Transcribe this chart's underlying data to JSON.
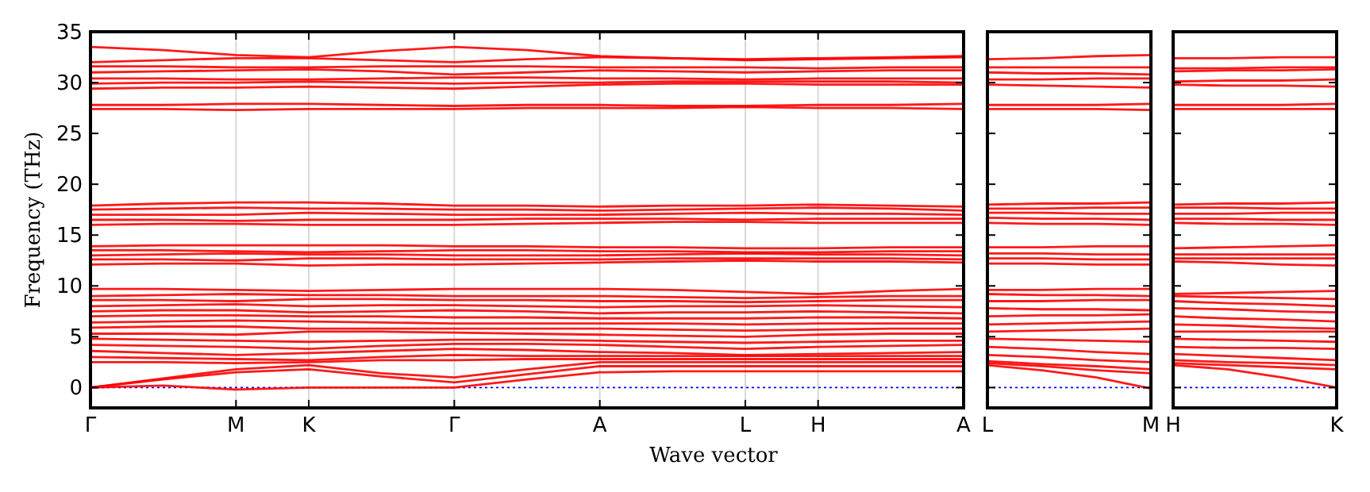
{
  "chart_data": [
    {
      "type": "line",
      "xlabel": "Wave vector",
      "ylabel": "Frequency (THz)",
      "categories": [
        "Γ",
        null,
        "M",
        "K",
        null,
        "Γ",
        null,
        "A",
        null,
        "L",
        "H",
        null,
        "A"
      ],
      "ylim": [
        -2,
        35
      ],
      "yticks": [
        0,
        5,
        10,
        15,
        20,
        25,
        30,
        35
      ],
      "grid": "x",
      "line_style": "solid",
      "ref_lines": [
        {
          "axis": "y",
          "value": 0,
          "color": "#0000ff",
          "line_style": "dotted"
        }
      ],
      "series": [
        {
          "color": "#ff0000",
          "values": [
            0,
            0.2,
            -0.2,
            0,
            0,
            0,
            0.8,
            1.5,
            1.6,
            1.6,
            1.6,
            1.6,
            1.6
          ]
        },
        {
          "color": "#ff0000",
          "values": [
            0,
            0.8,
            1.5,
            1.8,
            1.1,
            0.5,
            1.3,
            2.1,
            2.1,
            2.1,
            2.1,
            2.1,
            2.1
          ]
        },
        {
          "color": "#ff0000",
          "values": [
            0,
            0.9,
            1.8,
            2.2,
            1.4,
            1.0,
            1.8,
            2.5,
            2.5,
            2.5,
            2.5,
            2.5,
            2.5
          ]
        },
        {
          "color": "#ff0000",
          "values": [
            2.5,
            2.5,
            2.4,
            2.5,
            2.7,
            2.7,
            2.8,
            2.8,
            2.8,
            2.8,
            2.8,
            2.8,
            2.8
          ]
        },
        {
          "color": "#ff0000",
          "values": [
            3.0,
            2.9,
            2.8,
            2.7,
            3.0,
            3.2,
            3.1,
            3.1,
            3.1,
            3.1,
            3.1,
            3.1,
            3.1
          ]
        },
        {
          "color": "#ff0000",
          "values": [
            3.6,
            3.4,
            3.2,
            3.4,
            3.6,
            3.8,
            3.7,
            3.5,
            3.4,
            3.2,
            3.3,
            3.4,
            3.5
          ]
        },
        {
          "color": "#ff0000",
          "values": [
            4.2,
            4.1,
            4.0,
            3.8,
            4.1,
            4.3,
            4.3,
            4.2,
            4.0,
            3.8,
            4.0,
            4.1,
            4.2
          ]
        },
        {
          "color": "#ff0000",
          "values": [
            4.8,
            4.7,
            4.6,
            4.5,
            4.6,
            4.7,
            4.7,
            4.6,
            4.5,
            4.4,
            4.5,
            4.6,
            4.6
          ]
        },
        {
          "color": "#ff0000",
          "values": [
            5.3,
            5.3,
            5.2,
            5.5,
            5.5,
            5.4,
            5.3,
            5.2,
            5.1,
            5.0,
            5.2,
            5.3,
            5.3
          ]
        },
        {
          "color": "#ff0000",
          "values": [
            5.9,
            6.0,
            6.0,
            5.8,
            5.8,
            5.8,
            5.8,
            5.8,
            5.7,
            5.6,
            5.7,
            5.8,
            5.8
          ]
        },
        {
          "color": "#ff0000",
          "values": [
            6.4,
            6.5,
            6.6,
            6.5,
            6.4,
            6.3,
            6.3,
            6.3,
            6.3,
            6.2,
            6.3,
            6.3,
            6.3
          ]
        },
        {
          "color": "#ff0000",
          "values": [
            7.0,
            7.1,
            7.1,
            7.0,
            7.0,
            6.9,
            6.9,
            6.8,
            6.8,
            6.8,
            6.9,
            6.9,
            6.8
          ]
        },
        {
          "color": "#ff0000",
          "values": [
            7.5,
            7.6,
            7.6,
            7.4,
            7.5,
            7.6,
            7.5,
            7.3,
            7.4,
            7.4,
            7.5,
            7.4,
            7.3
          ]
        },
        {
          "color": "#ff0000",
          "values": [
            8.0,
            8.1,
            8.2,
            8.0,
            8.1,
            8.1,
            8.0,
            7.9,
            8.0,
            8.0,
            8.1,
            8.0,
            7.9
          ]
        },
        {
          "color": "#ff0000",
          "values": [
            8.6,
            8.6,
            8.5,
            8.7,
            8.7,
            8.6,
            8.6,
            8.5,
            8.5,
            8.4,
            8.5,
            8.6,
            8.6
          ]
        },
        {
          "color": "#ff0000",
          "values": [
            9.0,
            9.1,
            9.2,
            9.1,
            9.1,
            9.0,
            9.0,
            9.0,
            8.9,
            8.8,
            8.9,
            9.0,
            9.0
          ]
        },
        {
          "color": "#ff0000",
          "values": [
            9.7,
            9.7,
            9.6,
            9.5,
            9.6,
            9.7,
            9.7,
            9.7,
            9.6,
            9.4,
            9.2,
            9.5,
            9.7
          ]
        },
        {
          "color": "#ff0000",
          "values": [
            12.1,
            12.2,
            12.2,
            12.0,
            12.1,
            12.1,
            12.2,
            12.3,
            12.4,
            12.5,
            12.4,
            12.4,
            12.3
          ]
        },
        {
          "color": "#ff0000",
          "values": [
            12.6,
            12.6,
            12.5,
            12.7,
            12.7,
            12.6,
            12.6,
            12.6,
            12.7,
            12.7,
            12.7,
            12.7,
            12.6
          ]
        },
        {
          "color": "#ff0000",
          "values": [
            13.0,
            13.1,
            13.2,
            13.1,
            13.1,
            13.0,
            13.0,
            13.0,
            13.1,
            13.2,
            13.1,
            13.1,
            13.0
          ]
        },
        {
          "color": "#ff0000",
          "values": [
            13.5,
            13.5,
            13.4,
            13.3,
            13.4,
            13.5,
            13.5,
            13.4,
            13.4,
            13.3,
            13.3,
            13.4,
            13.4
          ]
        },
        {
          "color": "#ff0000",
          "values": [
            13.9,
            14.0,
            14.0,
            14.0,
            14.0,
            13.9,
            13.9,
            13.8,
            13.8,
            13.7,
            13.7,
            13.8,
            13.8
          ]
        },
        {
          "color": "#ff0000",
          "values": [
            16.0,
            16.1,
            16.1,
            16.0,
            16.0,
            16.0,
            16.1,
            16.2,
            16.3,
            16.3,
            16.2,
            16.2,
            16.2
          ]
        },
        {
          "color": "#ff0000",
          "values": [
            16.5,
            16.5,
            16.4,
            16.5,
            16.5,
            16.5,
            16.6,
            16.6,
            16.6,
            16.5,
            16.6,
            16.6,
            16.6
          ]
        },
        {
          "color": "#ff0000",
          "values": [
            17.0,
            17.0,
            17.0,
            17.2,
            17.1,
            17.0,
            17.0,
            17.0,
            17.1,
            17.2,
            17.1,
            17.1,
            17.0
          ]
        },
        {
          "color": "#ff0000",
          "values": [
            17.5,
            17.6,
            17.7,
            17.6,
            17.6,
            17.5,
            17.5,
            17.4,
            17.5,
            17.6,
            17.7,
            17.6,
            17.4
          ]
        },
        {
          "color": "#ff0000",
          "values": [
            17.9,
            18.1,
            18.2,
            18.2,
            18.1,
            17.9,
            17.9,
            17.8,
            17.9,
            17.9,
            18.0,
            17.9,
            17.8
          ]
        },
        {
          "color": "#ff0000",
          "values": [
            27.4,
            27.4,
            27.3,
            27.4,
            27.4,
            27.4,
            27.5,
            27.5,
            27.5,
            27.6,
            27.5,
            27.5,
            27.4
          ]
        },
        {
          "color": "#ff0000",
          "values": [
            27.8,
            27.8,
            27.9,
            27.9,
            27.8,
            27.7,
            27.8,
            27.8,
            27.7,
            27.7,
            27.8,
            27.8,
            27.9
          ]
        },
        {
          "color": "#ff0000",
          "values": [
            29.4,
            29.5,
            29.5,
            29.6,
            29.5,
            29.4,
            29.6,
            29.8,
            29.9,
            29.9,
            29.8,
            29.8,
            29.8
          ]
        },
        {
          "color": "#ff0000",
          "values": [
            29.9,
            30.0,
            30.0,
            30.1,
            30.0,
            29.9,
            30.0,
            30.0,
            30.1,
            30.1,
            30.1,
            30.1,
            30.0
          ]
        },
        {
          "color": "#ff0000",
          "values": [
            30.4,
            30.4,
            30.3,
            30.3,
            30.4,
            30.5,
            30.5,
            30.4,
            30.4,
            30.3,
            30.4,
            30.4,
            30.4
          ]
        },
        {
          "color": "#ff0000",
          "values": [
            31.0,
            31.1,
            31.2,
            31.3,
            31.1,
            30.8,
            31.0,
            31.2,
            31.1,
            31.0,
            31.1,
            31.2,
            31.2
          ]
        },
        {
          "color": "#ff0000",
          "values": [
            31.6,
            31.6,
            31.5,
            31.5,
            31.6,
            31.6,
            31.6,
            31.5,
            31.5,
            31.5,
            31.4,
            31.5,
            31.5
          ]
        },
        {
          "color": "#ff0000",
          "values": [
            32.0,
            32.2,
            32.4,
            32.4,
            32.2,
            32.0,
            32.3,
            32.5,
            32.4,
            32.2,
            32.3,
            32.4,
            32.5
          ]
        },
        {
          "color": "#ff0000",
          "values": [
            33.5,
            33.2,
            32.7,
            32.5,
            33.1,
            33.5,
            33.2,
            32.6,
            32.4,
            32.3,
            32.4,
            32.5,
            32.6
          ]
        }
      ]
    },
    {
      "type": "line",
      "categories": [
        "L",
        null,
        null,
        "M"
      ],
      "ylim": [
        -2,
        35
      ],
      "yticks": [
        0,
        5,
        10,
        15,
        20,
        25,
        30,
        35
      ],
      "tick_labels": "x",
      "line_style": "solid",
      "ref_lines": [
        {
          "axis": "y",
          "value": 0,
          "color": "#0000ff",
          "line_style": "dotted"
        }
      ],
      "series": [
        {
          "color": "#ff0000",
          "values": [
            2.2,
            1.7,
            1.0,
            -0.1
          ]
        },
        {
          "color": "#ff0000",
          "values": [
            2.4,
            2.1,
            1.7,
            1.4
          ]
        },
        {
          "color": "#ff0000",
          "values": [
            2.6,
            2.3,
            2.1,
            1.8
          ]
        },
        {
          "color": "#ff0000",
          "values": [
            3.2,
            3.0,
            2.7,
            2.5
          ]
        },
        {
          "color": "#ff0000",
          "values": [
            4.0,
            3.8,
            3.5,
            3.3
          ]
        },
        {
          "color": "#ff0000",
          "values": [
            4.8,
            4.7,
            4.6,
            4.5
          ]
        },
        {
          "color": "#ff0000",
          "values": [
            5.5,
            5.6,
            5.7,
            5.8
          ]
        },
        {
          "color": "#ff0000",
          "values": [
            6.2,
            6.3,
            6.4,
            6.5
          ]
        },
        {
          "color": "#ff0000",
          "values": [
            7.0,
            7.1,
            7.1,
            7.2
          ]
        },
        {
          "color": "#ff0000",
          "values": [
            7.8,
            7.7,
            7.7,
            7.6
          ]
        },
        {
          "color": "#ff0000",
          "values": [
            8.5,
            8.5,
            8.6,
            8.6
          ]
        },
        {
          "color": "#ff0000",
          "values": [
            9.2,
            9.1,
            9.1,
            9.0
          ]
        },
        {
          "color": "#ff0000",
          "values": [
            9.6,
            9.6,
            9.7,
            9.7
          ]
        },
        {
          "color": "#ff0000",
          "values": [
            12.2,
            12.2,
            12.1,
            12.1
          ]
        },
        {
          "color": "#ff0000",
          "values": [
            12.7,
            12.7,
            12.6,
            12.6
          ]
        },
        {
          "color": "#ff0000",
          "values": [
            13.2,
            13.2,
            13.1,
            13.1
          ]
        },
        {
          "color": "#ff0000",
          "values": [
            13.8,
            13.8,
            13.9,
            13.9
          ]
        },
        {
          "color": "#ff0000",
          "values": [
            16.2,
            16.1,
            16.1,
            16.0
          ]
        },
        {
          "color": "#ff0000",
          "values": [
            16.7,
            16.6,
            16.6,
            16.5
          ]
        },
        {
          "color": "#ff0000",
          "values": [
            17.2,
            17.2,
            17.1,
            17.1
          ]
        },
        {
          "color": "#ff0000",
          "values": [
            17.6,
            17.6,
            17.7,
            17.7
          ]
        },
        {
          "color": "#ff0000",
          "values": [
            18.0,
            18.1,
            18.1,
            18.2
          ]
        },
        {
          "color": "#ff0000",
          "values": [
            27.4,
            27.4,
            27.4,
            27.3
          ]
        },
        {
          "color": "#ff0000",
          "values": [
            27.8,
            27.8,
            27.8,
            27.9
          ]
        },
        {
          "color": "#ff0000",
          "values": [
            29.8,
            29.7,
            29.6,
            29.5
          ]
        },
        {
          "color": "#ff0000",
          "values": [
            30.3,
            30.3,
            30.4,
            30.4
          ]
        },
        {
          "color": "#ff0000",
          "values": [
            31.0,
            30.9,
            30.9,
            30.8
          ]
        },
        {
          "color": "#ff0000",
          "values": [
            31.5,
            31.5,
            31.5,
            31.5
          ]
        },
        {
          "color": "#ff0000",
          "values": [
            32.3,
            32.4,
            32.6,
            32.7
          ]
        }
      ]
    },
    {
      "type": "line",
      "categories": [
        "H",
        null,
        null,
        "K"
      ],
      "ylim": [
        -2,
        35
      ],
      "yticks": [
        0,
        5,
        10,
        15,
        20,
        25,
        30,
        35
      ],
      "tick_labels": "x",
      "line_style": "solid",
      "ref_lines": [
        {
          "axis": "y",
          "value": 0,
          "color": "#0000ff",
          "line_style": "dotted"
        }
      ],
      "series": [
        {
          "color": "#ff0000",
          "values": [
            2.2,
            1.8,
            1.0,
            0
          ]
        },
        {
          "color": "#ff0000",
          "values": [
            2.4,
            2.2,
            2.0,
            1.8
          ]
        },
        {
          "color": "#ff0000",
          "values": [
            2.7,
            2.5,
            2.4,
            2.2
          ]
        },
        {
          "color": "#ff0000",
          "values": [
            3.3,
            3.1,
            2.9,
            2.7
          ]
        },
        {
          "color": "#ff0000",
          "values": [
            4.0,
            3.9,
            3.9,
            3.8
          ]
        },
        {
          "color": "#ff0000",
          "values": [
            4.8,
            4.7,
            4.6,
            4.5
          ]
        },
        {
          "color": "#ff0000",
          "values": [
            5.5,
            5.5,
            5.5,
            5.5
          ]
        },
        {
          "color": "#ff0000",
          "values": [
            6.2,
            6.1,
            5.9,
            5.8
          ]
        },
        {
          "color": "#ff0000",
          "values": [
            7.0,
            6.8,
            6.7,
            6.5
          ]
        },
        {
          "color": "#ff0000",
          "values": [
            7.8,
            7.7,
            7.5,
            7.4
          ]
        },
        {
          "color": "#ff0000",
          "values": [
            8.5,
            8.3,
            8.2,
            8.0
          ]
        },
        {
          "color": "#ff0000",
          "values": [
            9.0,
            8.9,
            8.8,
            8.7
          ]
        },
        {
          "color": "#ff0000",
          "values": [
            9.2,
            9.3,
            9.4,
            9.5
          ]
        },
        {
          "color": "#ff0000",
          "values": [
            12.4,
            12.3,
            12.1,
            12.0
          ]
        },
        {
          "color": "#ff0000",
          "values": [
            12.7,
            12.7,
            12.7,
            12.7
          ]
        },
        {
          "color": "#ff0000",
          "values": [
            13.1,
            13.1,
            13.1,
            13.1
          ]
        },
        {
          "color": "#ff0000",
          "values": [
            13.7,
            13.8,
            13.9,
            14.0
          ]
        },
        {
          "color": "#ff0000",
          "values": [
            16.2,
            16.1,
            16.1,
            16.0
          ]
        },
        {
          "color": "#ff0000",
          "values": [
            16.6,
            16.6,
            16.5,
            16.5
          ]
        },
        {
          "color": "#ff0000",
          "values": [
            17.1,
            17.1,
            17.2,
            17.2
          ]
        },
        {
          "color": "#ff0000",
          "values": [
            17.7,
            17.7,
            17.6,
            17.6
          ]
        },
        {
          "color": "#ff0000",
          "values": [
            18.0,
            18.1,
            18.1,
            18.2
          ]
        },
        {
          "color": "#ff0000",
          "values": [
            27.4,
            27.4,
            27.4,
            27.4
          ]
        },
        {
          "color": "#ff0000",
          "values": [
            27.8,
            27.8,
            27.8,
            27.9
          ]
        },
        {
          "color": "#ff0000",
          "values": [
            29.8,
            29.7,
            29.7,
            29.6
          ]
        },
        {
          "color": "#ff0000",
          "values": [
            30.1,
            30.2,
            30.2,
            30.3
          ]
        },
        {
          "color": "#ff0000",
          "values": [
            31.1,
            31.2,
            31.2,
            31.3
          ]
        },
        {
          "color": "#ff0000",
          "values": [
            31.4,
            31.4,
            31.5,
            31.5
          ]
        },
        {
          "color": "#ff0000",
          "values": [
            32.4,
            32.4,
            32.5,
            32.5
          ]
        }
      ]
    }
  ]
}
